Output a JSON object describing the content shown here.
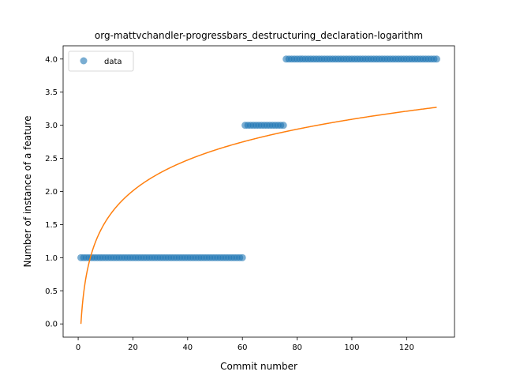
{
  "chart_data": {
    "type": "scatter",
    "title": "org-mattvchandler-progressbars_destructuring_declaration-logarithm",
    "xlabel": "Commit number",
    "ylabel": "Number of instance of a feature",
    "xlim": [
      -5.5,
      137.5
    ],
    "ylim": [
      -0.2,
      4.2
    ],
    "xticks": [
      0,
      20,
      40,
      60,
      80,
      100,
      120
    ],
    "yticks": [
      0.0,
      0.5,
      1.0,
      1.5,
      2.0,
      2.5,
      3.0,
      3.5,
      4.0
    ],
    "ytick_labels": [
      "0.0",
      "0.5",
      "1.0",
      "1.5",
      "2.0",
      "2.5",
      "3.0",
      "3.5",
      "4.0"
    ],
    "legend": {
      "position": "top-left",
      "entries": [
        "data"
      ]
    },
    "grid": false,
    "series": [
      {
        "name": "data",
        "kind": "scatter",
        "color": "#1f77b4",
        "segments": [
          {
            "x_from": 1,
            "x_to": 60,
            "y": 1
          },
          {
            "x_from": 61,
            "x_to": 75,
            "y": 3
          },
          {
            "x_from": 76,
            "x_to": 131,
            "y": 4
          }
        ]
      },
      {
        "kind": "line",
        "color": "#ff7f0e",
        "model": "logarithmic",
        "a": 0.0,
        "b": 0.671,
        "x_range": [
          1,
          131
        ]
      }
    ]
  }
}
